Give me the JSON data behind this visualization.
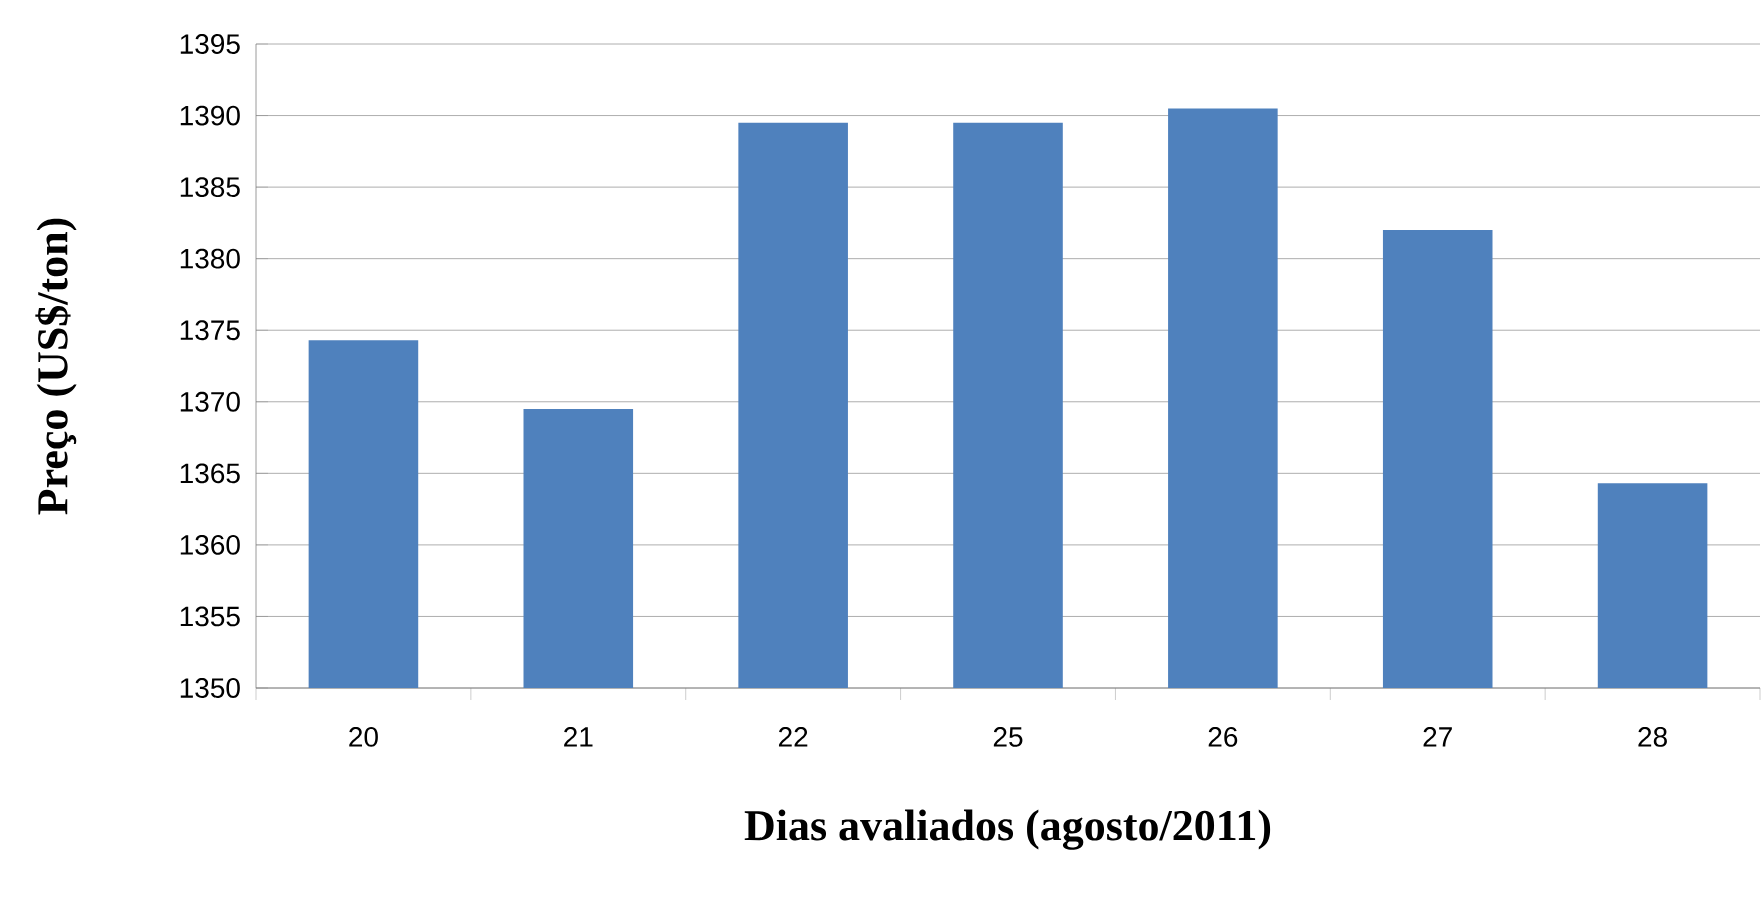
{
  "chart_data": {
    "type": "bar",
    "xlabel": "Dias avaliados (agosto/2011)",
    "ylabel": "Preço (US$/ton)",
    "categories": [
      "20",
      "21",
      "22",
      "25",
      "26",
      "27",
      "28"
    ],
    "values": [
      1374.3,
      1369.5,
      1389.5,
      1389.5,
      1390.5,
      1382,
      1364.3
    ],
    "color": "#4f81bd",
    "ylim": [
      1350,
      1395
    ],
    "yticks": [
      1350,
      1355,
      1360,
      1365,
      1370,
      1375,
      1380,
      1385,
      1390,
      1395
    ],
    "grid": "y"
  }
}
